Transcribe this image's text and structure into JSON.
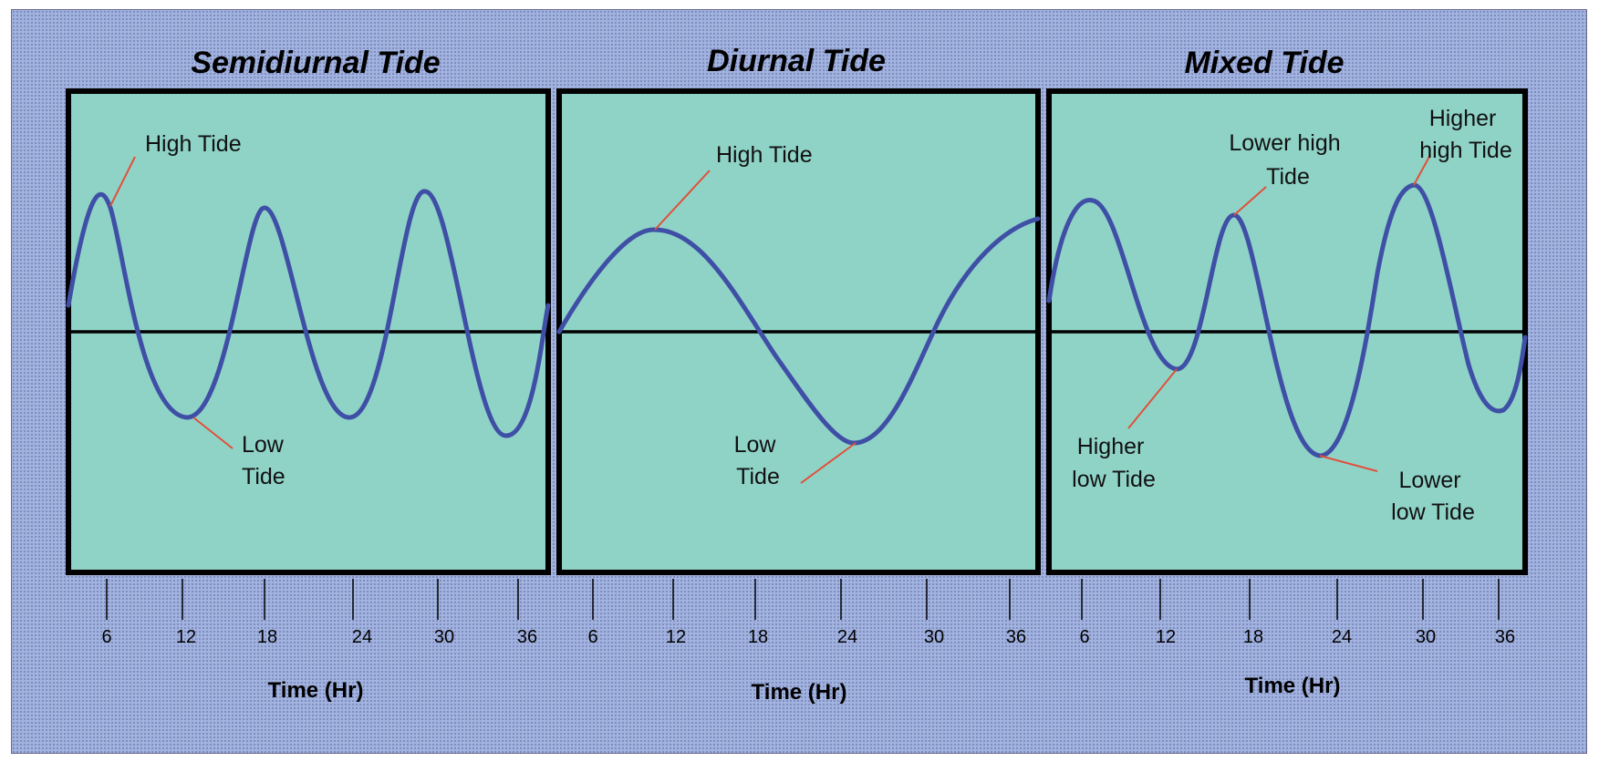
{
  "colors": {
    "background": "#a3b3df",
    "plot_fill": "#8fd3c7",
    "curve": "#3f4fa6",
    "leader_line": "#e0503a",
    "frame": "#000000"
  },
  "panels": [
    {
      "title": "Semidiurnal Tide",
      "x_axis_title": "Time (Hr)",
      "ticks": [
        "6",
        "12",
        "18",
        "24",
        "30",
        "36"
      ],
      "annotations": [
        {
          "lines": [
            "High Tide"
          ]
        },
        {
          "lines": [
            "Low",
            "Tide"
          ]
        }
      ]
    },
    {
      "title": "Diurnal Tide",
      "x_axis_title": "Time (Hr)",
      "ticks": [
        "6",
        "12",
        "18",
        "24",
        "30",
        "36"
      ],
      "annotations": [
        {
          "lines": [
            "High Tide"
          ]
        },
        {
          "lines": [
            "Low",
            "Tide"
          ]
        }
      ]
    },
    {
      "title": "Mixed Tide",
      "x_axis_title": "Time (Hr)",
      "ticks": [
        "6",
        "12",
        "18",
        "24",
        "30",
        "36"
      ],
      "annotations": [
        {
          "lines": [
            "Lower high",
            "Tide"
          ]
        },
        {
          "lines": [
            "Higher",
            "high Tide"
          ]
        },
        {
          "lines": [
            "Higher",
            "low Tide"
          ]
        },
        {
          "lines": [
            "Lower",
            "low Tide"
          ]
        }
      ]
    }
  ]
}
